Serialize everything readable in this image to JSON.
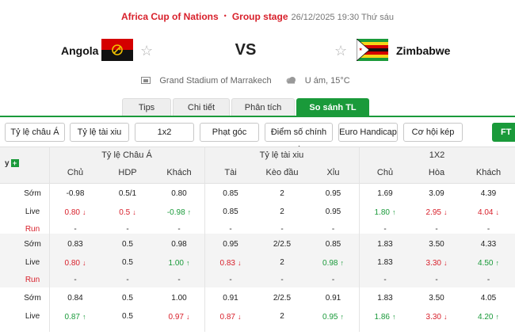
{
  "match": {
    "league": "Africa Cup of Nations",
    "separator": "•",
    "stage": "Group stage",
    "datetime": "26/12/2025 19:30 Thứ sáu",
    "home": "Angola",
    "away": "Zimbabwe",
    "vs": "VS",
    "venue": "Grand Stadium of Marrakech",
    "weather": "U ám, 15°C"
  },
  "tabs": [
    {
      "label": "Tips"
    },
    {
      "label": "Chi tiết"
    },
    {
      "label": "Phân tích"
    },
    {
      "label": "So sánh TL",
      "active": true
    }
  ],
  "filters": [
    {
      "label": "Tỷ lệ châu Á"
    },
    {
      "label": "Tỷ lệ tài xiu"
    },
    {
      "label": "1x2"
    },
    {
      "label": "Phạt góc"
    },
    {
      "label": "Điểm số chính xác"
    },
    {
      "label": "Euro Handicap"
    },
    {
      "label": "Cơ hội kép"
    },
    {
      "label": "FT"
    }
  ],
  "table": {
    "left_header": "y",
    "groups": [
      "Tỷ lệ Châu Á",
      "Tỷ lệ tài xiu",
      "1X2"
    ],
    "columns": [
      "Chủ",
      "HDP",
      "Khách",
      "Tài",
      "Kèo đầu",
      "Xỉu",
      "Chủ",
      "Hòa",
      "Khách"
    ],
    "blocks": [
      {
        "rows": [
          {
            "label": "Sớm",
            "cells": [
              [
                "-0.98",
                ""
              ],
              [
                "0.5/1",
                ""
              ],
              [
                "0.80",
                ""
              ],
              [
                "0.85",
                ""
              ],
              [
                "2",
                ""
              ],
              [
                "0.95",
                ""
              ],
              [
                "1.69",
                ""
              ],
              [
                "3.09",
                ""
              ],
              [
                "4.39",
                ""
              ]
            ]
          },
          {
            "label": "Live",
            "cells": [
              [
                "0.80",
                "down"
              ],
              [
                "0.5",
                "down"
              ],
              [
                "-0.98",
                "up"
              ],
              [
                "0.85",
                ""
              ],
              [
                "2",
                ""
              ],
              [
                "0.95",
                ""
              ],
              [
                "1.80",
                "up"
              ],
              [
                "2.95",
                "down"
              ],
              [
                "4.04",
                "down"
              ]
            ]
          },
          {
            "label": "Run",
            "run": true,
            "cells": [
              [
                "-",
                ""
              ],
              [
                "-",
                ""
              ],
              [
                "-",
                ""
              ],
              [
                "-",
                ""
              ],
              [
                "-",
                ""
              ],
              [
                "-",
                ""
              ],
              [
                "-",
                ""
              ],
              [
                "-",
                ""
              ],
              [
                "-",
                ""
              ]
            ]
          }
        ]
      },
      {
        "rows": [
          {
            "label": "Sớm",
            "cells": [
              [
                "0.83",
                ""
              ],
              [
                "0.5",
                ""
              ],
              [
                "0.98",
                ""
              ],
              [
                "0.95",
                ""
              ],
              [
                "2/2.5",
                ""
              ],
              [
                "0.85",
                ""
              ],
              [
                "1.83",
                ""
              ],
              [
                "3.50",
                ""
              ],
              [
                "4.33",
                ""
              ]
            ]
          },
          {
            "label": "Live",
            "cells": [
              [
                "0.80",
                "down"
              ],
              [
                "0.5",
                ""
              ],
              [
                "1.00",
                "up"
              ],
              [
                "0.83",
                "down"
              ],
              [
                "2",
                ""
              ],
              [
                "0.98",
                "up"
              ],
              [
                "1.83",
                ""
              ],
              [
                "3.30",
                "down"
              ],
              [
                "4.50",
                "up"
              ]
            ]
          },
          {
            "label": "Run",
            "run": true,
            "cells": [
              [
                "-",
                ""
              ],
              [
                "-",
                ""
              ],
              [
                "-",
                ""
              ],
              [
                "-",
                ""
              ],
              [
                "-",
                ""
              ],
              [
                "-",
                ""
              ],
              [
                "-",
                ""
              ],
              [
                "-",
                ""
              ],
              [
                "-",
                ""
              ]
            ]
          }
        ]
      },
      {
        "rows": [
          {
            "label": "Sớm",
            "cells": [
              [
                "0.84",
                ""
              ],
              [
                "0.5",
                ""
              ],
              [
                "1.00",
                ""
              ],
              [
                "0.91",
                ""
              ],
              [
                "2/2.5",
                ""
              ],
              [
                "0.91",
                ""
              ],
              [
                "1.83",
                ""
              ],
              [
                "3.50",
                ""
              ],
              [
                "4.05",
                ""
              ]
            ]
          },
          {
            "label": "Live",
            "cells": [
              [
                "0.87",
                "up"
              ],
              [
                "0.5",
                ""
              ],
              [
                "0.97",
                "down"
              ],
              [
                "0.87",
                "down"
              ],
              [
                "2",
                ""
              ],
              [
                "0.95",
                "up"
              ],
              [
                "1.86",
                "up"
              ],
              [
                "3.30",
                "down"
              ],
              [
                "4.20",
                "up"
              ]
            ]
          }
        ]
      }
    ]
  },
  "colors": {
    "accent": "#1a9a3a",
    "brand_red": "#d8202b",
    "up": "#1a9a3a",
    "down": "#d8202b"
  },
  "icons": {
    "favorite": "star-outline-icon",
    "venue": "stadium-icon",
    "weather": "cloud-icon",
    "add": "plus-icon"
  }
}
